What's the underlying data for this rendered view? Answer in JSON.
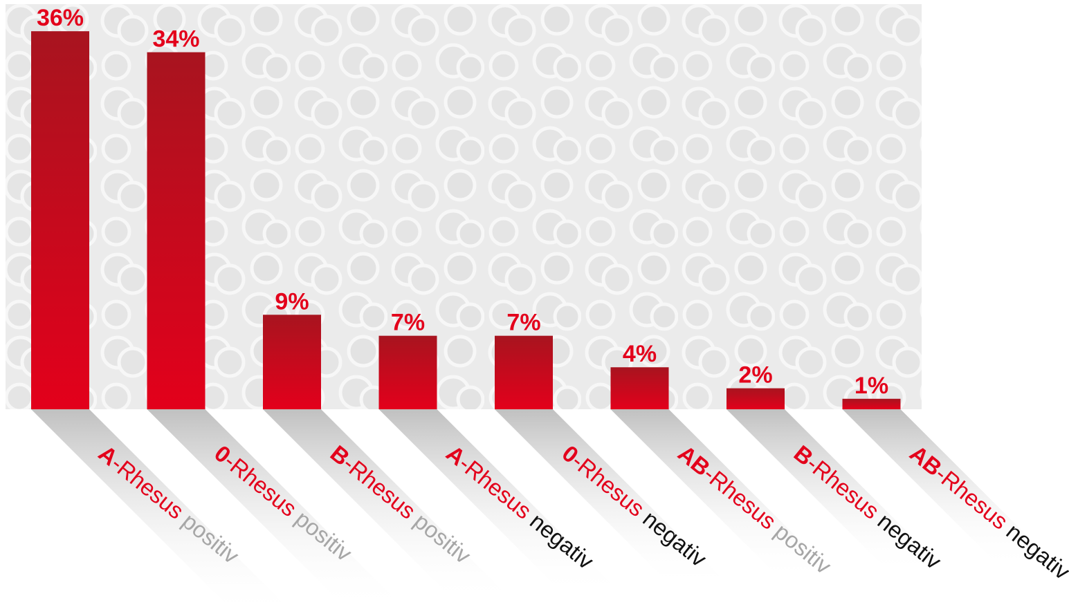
{
  "chart_data": {
    "type": "bar",
    "categories": [
      {
        "group": "A",
        "rhesus": "-Rhesus",
        "sign": "positiv"
      },
      {
        "group": "0",
        "rhesus": "-Rhesus",
        "sign": "positiv"
      },
      {
        "group": "B",
        "rhesus": "-Rhesus",
        "sign": "positiv"
      },
      {
        "group": "A",
        "rhesus": "-Rhesus",
        "sign": "negativ"
      },
      {
        "group": "0",
        "rhesus": "-Rhesus",
        "sign": "negativ"
      },
      {
        "group": "AB",
        "rhesus": "-Rhesus",
        "sign": "positiv"
      },
      {
        "group": "B",
        "rhesus": "-Rhesus",
        "sign": "negativ"
      },
      {
        "group": "AB",
        "rhesus": "-Rhesus",
        "sign": "negativ"
      }
    ],
    "values": [
      36,
      34,
      9,
      7,
      7,
      4,
      2,
      1
    ],
    "value_labels": [
      "36%",
      "34%",
      "9%",
      "7%",
      "7%",
      "4%",
      "2%",
      "1%"
    ],
    "ylim": [
      0,
      38
    ],
    "grid": false,
    "legend": "none"
  },
  "colors": {
    "bar_top": "#a8141f",
    "bar_bottom": "#e3001b",
    "value_text": "#e3001b",
    "group_text": "#e3001b",
    "rhesus_text": "#e3001b",
    "positiv_text": "#a6a6a6",
    "negativ_text": "#111111",
    "background": "#e6e6e6"
  }
}
